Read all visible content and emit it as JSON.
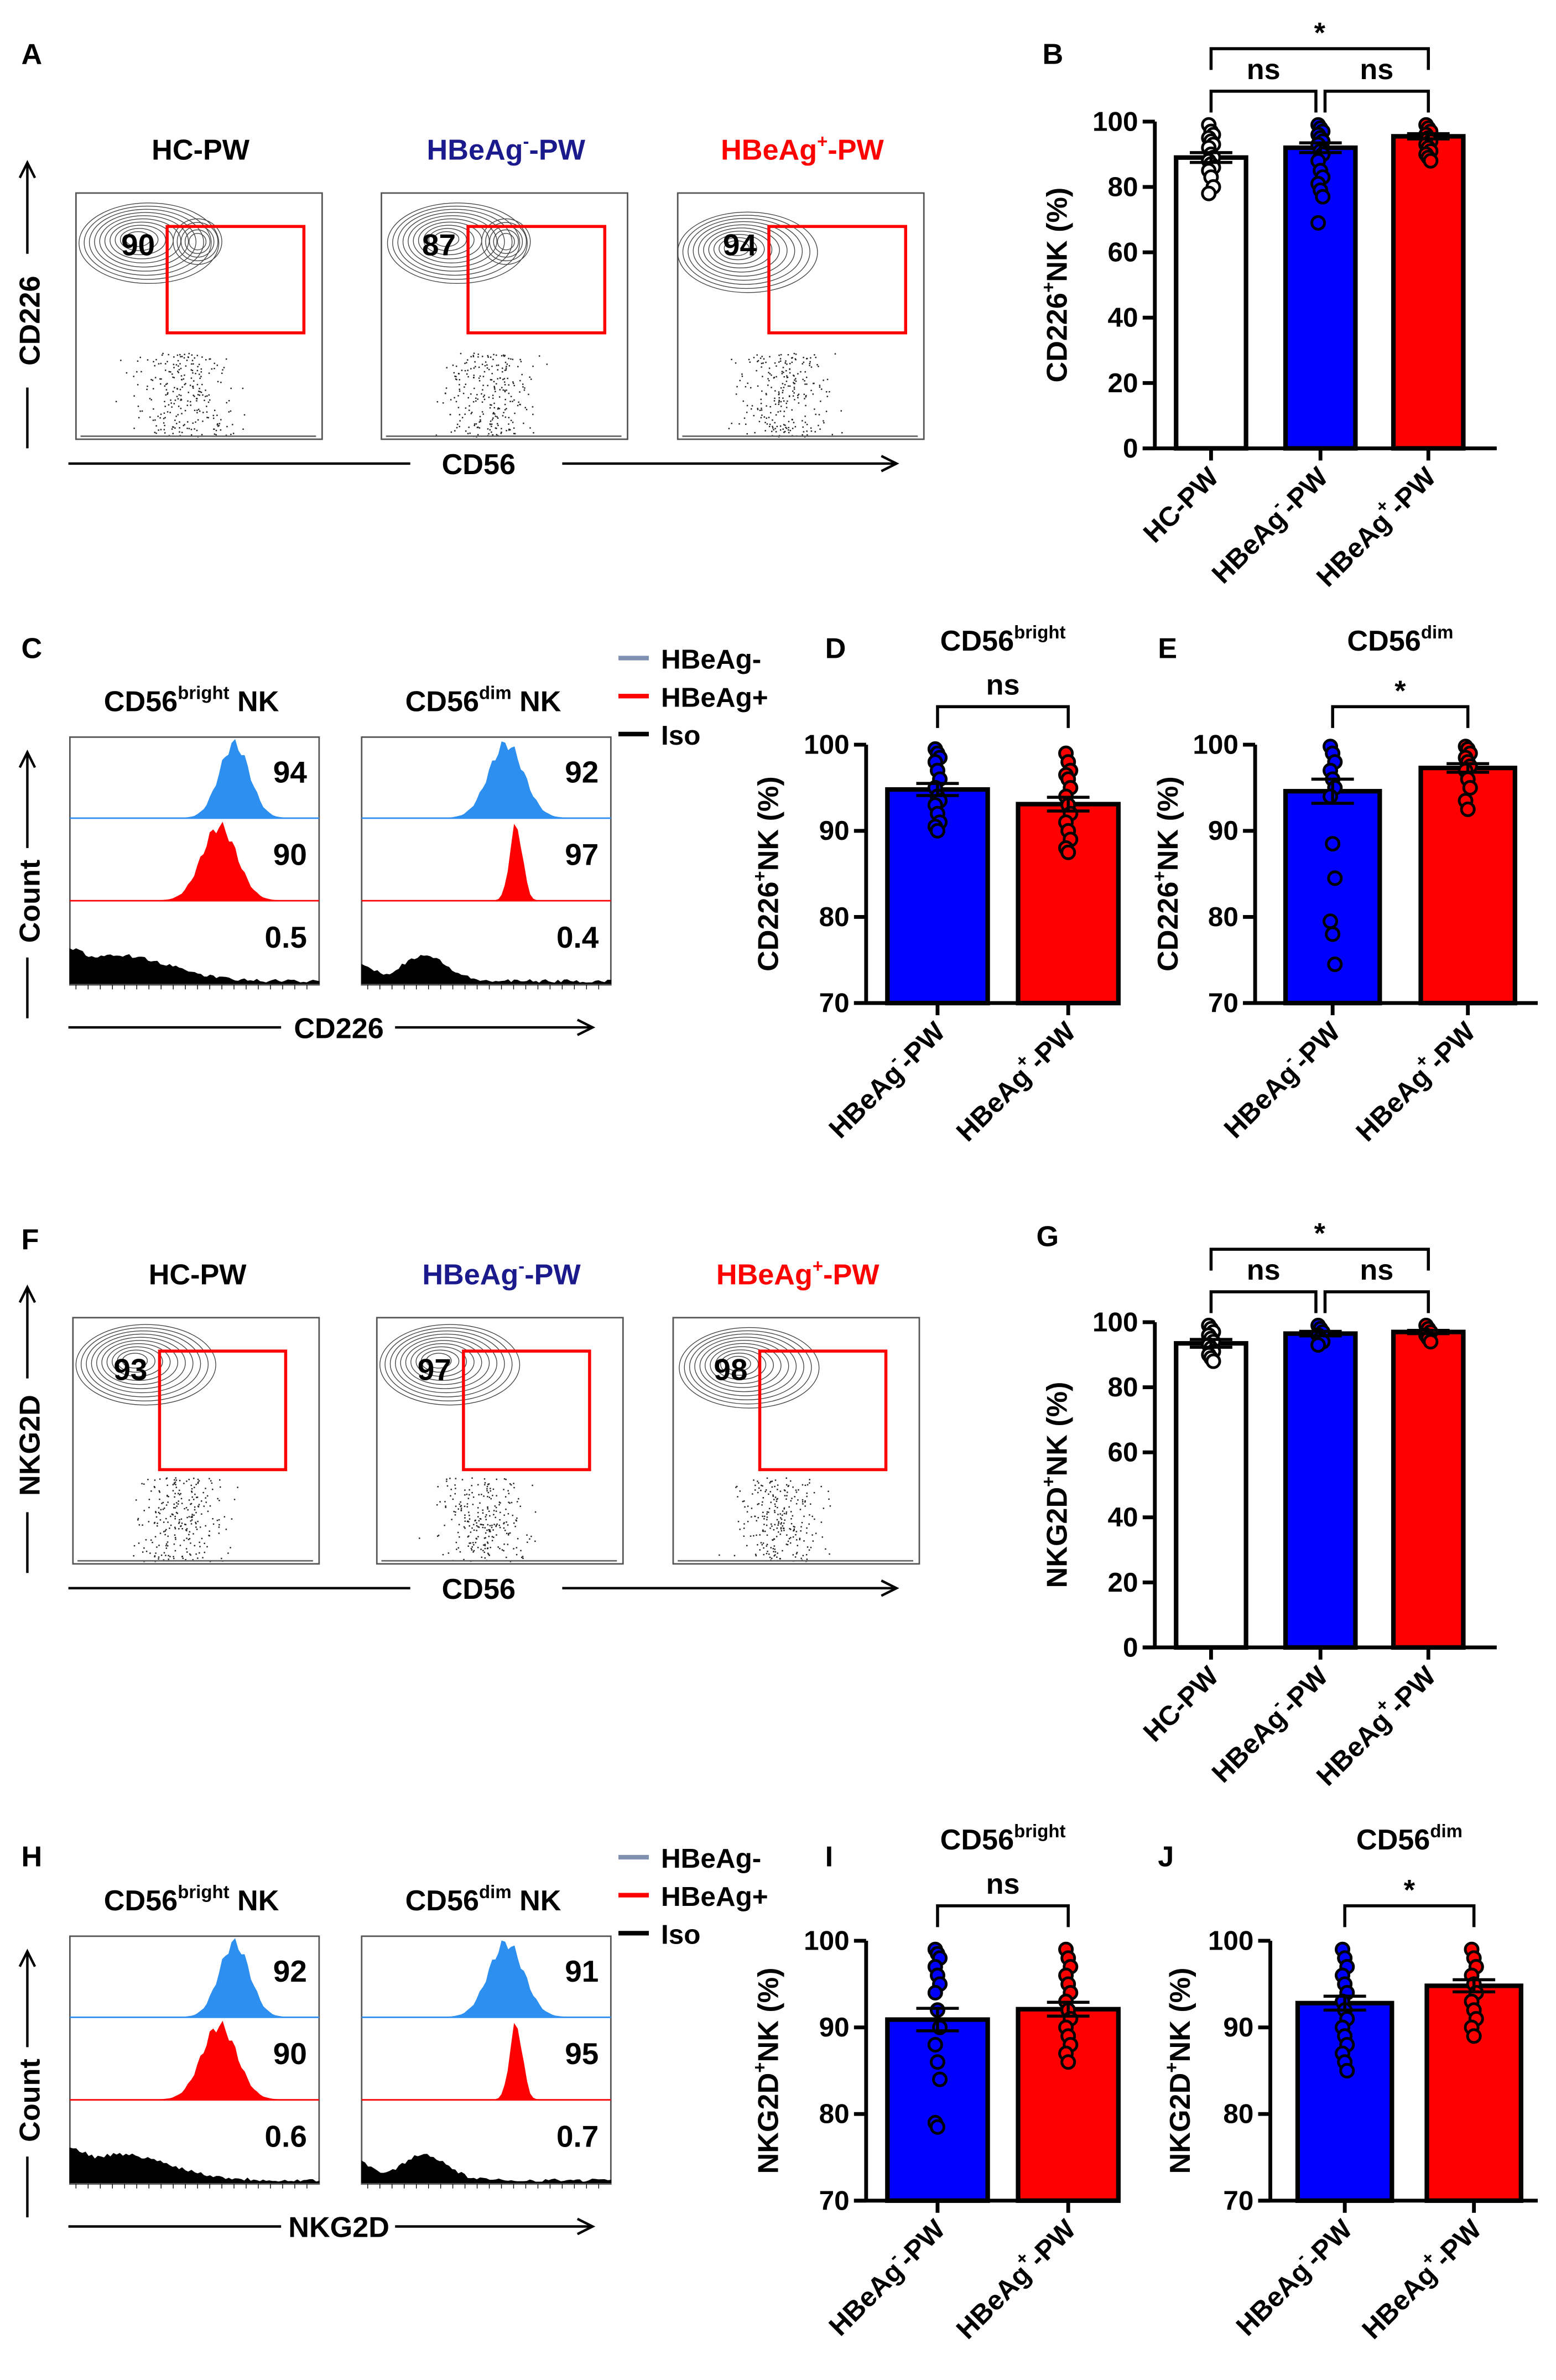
{
  "panels": {
    "A": "A",
    "B": "B",
    "C": "C",
    "D": "D",
    "E": "E",
    "F": "F",
    "G": "G",
    "H": "H",
    "I": "I",
    "J": "J"
  },
  "colors": {
    "hc": "#ffffff",
    "neg": "#0000ff",
    "pos": "#ff0000",
    "title_neg": "#1a1a8c",
    "hist_neg": "#2d8ff0",
    "hist_pos": "#ff0000",
    "hist_iso": "#000000",
    "gate": "#ff0000"
  },
  "panel_A": {
    "y_axis": "CD226",
    "x_axis": "CD56",
    "plots": [
      {
        "base": "HC-PW",
        "sup": "",
        "tail": "",
        "value": "90"
      },
      {
        "base": "HBeAg",
        "sup": "-",
        "tail": "-PW",
        "value": "87"
      },
      {
        "base": "HBeAg",
        "sup": "+",
        "tail": "-PW",
        "value": "94"
      }
    ]
  },
  "panel_C": {
    "y_axis": "Count",
    "x_axis": "CD226",
    "legend": [
      {
        "label": "HBeAg-"
      },
      {
        "label": "HBeAg+"
      },
      {
        "label": "Iso"
      }
    ],
    "groups": [
      {
        "base": "CD56",
        "sup": "bright",
        "tail": " NK",
        "values": [
          "94",
          "90",
          "0.5"
        ]
      },
      {
        "base": "CD56",
        "sup": "dim",
        "tail": " NK",
        "values": [
          "92",
          "97",
          "0.4"
        ]
      }
    ]
  },
  "panel_F": {
    "y_axis": "NKG2D",
    "x_axis": "CD56",
    "plots": [
      {
        "base": "HC-PW",
        "sup": "",
        "tail": "",
        "value": "93"
      },
      {
        "base": "HBeAg",
        "sup": "-",
        "tail": "-PW",
        "value": "97"
      },
      {
        "base": "HBeAg",
        "sup": "+",
        "tail": "-PW",
        "value": "98"
      }
    ]
  },
  "panel_H": {
    "y_axis": "Count",
    "x_axis": "NKG2D",
    "legend": [
      {
        "label": "HBeAg-"
      },
      {
        "label": "HBeAg+"
      },
      {
        "label": "Iso"
      }
    ],
    "groups": [
      {
        "base": "CD56",
        "sup": "bright",
        "tail": " NK",
        "values": [
          "92",
          "90",
          "0.6"
        ]
      },
      {
        "base": "CD56",
        "sup": "dim",
        "tail": " NK",
        "values": [
          "91",
          "95",
          "0.7"
        ]
      }
    ]
  },
  "chart_data": [
    {
      "id": "B",
      "type": "bar",
      "title": "",
      "ylabel_base": "CD226",
      "ylabel_sup": "+",
      "ylabel_tail": "NK (%)",
      "ylim": [
        0,
        100
      ],
      "yticks": [
        "0",
        "20",
        "40",
        "60",
        "80",
        "100"
      ],
      "categories": [
        {
          "base": "HC-PW",
          "sup": ""
        },
        {
          "base": "HBeAg",
          "sup": "-",
          "tail": "-PW"
        },
        {
          "base": "HBeAg",
          "sup": "+",
          "tail": "-PW"
        }
      ],
      "values": [
        89,
        92,
        95.5
      ],
      "sem": [
        1.5,
        1.5,
        0.8
      ],
      "points": [
        [
          99,
          97,
          96,
          95,
          94,
          93,
          92,
          90,
          89,
          88,
          87,
          86,
          85,
          83,
          80,
          78
        ],
        [
          99,
          98,
          97,
          96,
          95,
          94,
          93,
          91,
          90,
          88,
          85,
          83,
          81,
          79,
          77,
          69
        ],
        [
          99,
          98,
          97,
          96,
          95,
          94,
          93,
          92,
          91,
          90,
          89,
          88
        ]
      ],
      "significance": [
        {
          "pair": [
            0,
            1
          ],
          "label": "ns"
        },
        {
          "pair": [
            1,
            2
          ],
          "label": "ns"
        },
        {
          "pair": [
            0,
            2
          ],
          "label": "*"
        }
      ]
    },
    {
      "id": "D",
      "type": "bar",
      "title_base": "CD56",
      "title_sup": "bright",
      "ylabel_base": "CD226",
      "ylabel_sup": "+",
      "ylabel_tail": "NK (%)",
      "ylim": [
        70,
        100
      ],
      "yticks": [
        "70",
        "80",
        "90",
        "100"
      ],
      "categories": [
        {
          "base": "HBeAg",
          "sup": "-",
          "tail": "-PW"
        },
        {
          "base": "HBeAg",
          "sup": "+",
          "tail": "-PW"
        }
      ],
      "values": [
        94.8,
        93.1
      ],
      "sem": [
        0.7,
        0.8
      ],
      "points": [
        [
          99.5,
          99,
          98.5,
          98,
          97,
          96,
          95,
          94,
          93.5,
          93,
          92,
          91,
          90.5,
          90
        ],
        [
          99,
          98,
          97,
          96.5,
          96,
          95,
          94,
          93,
          92,
          91,
          90,
          89,
          88,
          87.5
        ]
      ],
      "significance": [
        {
          "pair": [
            0,
            1
          ],
          "label": "ns"
        }
      ]
    },
    {
      "id": "E",
      "type": "bar",
      "title_base": "CD56",
      "title_sup": "dim",
      "ylabel_base": "CD226",
      "ylabel_sup": "+",
      "ylabel_tail": "NK (%)",
      "ylim": [
        70,
        100
      ],
      "yticks": [
        "70",
        "80",
        "90",
        "100"
      ],
      "categories": [
        {
          "base": "HBeAg",
          "sup": "-",
          "tail": "-PW"
        },
        {
          "base": "HBeAg",
          "sup": "+",
          "tail": "-PW"
        }
      ],
      "values": [
        94.6,
        97.3
      ],
      "sem": [
        1.4,
        0.5
      ],
      "points": [
        [
          99.8,
          99,
          98,
          97,
          96,
          95,
          94,
          88.5,
          84.5,
          79.5,
          78,
          74.5
        ],
        [
          99.8,
          99.5,
          99,
          98.5,
          98,
          97.5,
          97,
          96,
          95,
          93.5,
          92.5
        ]
      ],
      "significance": [
        {
          "pair": [
            0,
            1
          ],
          "label": "*"
        }
      ]
    },
    {
      "id": "G",
      "type": "bar",
      "title": "",
      "ylabel_base": "NKG2D",
      "ylabel_sup": "+",
      "ylabel_tail": "NK (%)",
      "ylim": [
        0,
        100
      ],
      "yticks": [
        "0",
        "20",
        "40",
        "60",
        "80",
        "100"
      ],
      "categories": [
        {
          "base": "HC-PW",
          "sup": ""
        },
        {
          "base": "HBeAg",
          "sup": "-",
          "tail": "-PW"
        },
        {
          "base": "HBeAg",
          "sup": "+",
          "tail": "-PW"
        }
      ],
      "values": [
        93.5,
        96.5,
        97
      ],
      "sem": [
        1.2,
        0.7,
        0.5
      ],
      "points": [
        [
          99,
          98,
          97,
          96,
          95,
          94,
          93,
          92,
          91,
          90,
          89,
          88
        ],
        [
          99,
          98,
          97,
          96,
          95,
          94,
          93
        ],
        [
          99,
          98,
          97,
          96,
          95,
          94
        ]
      ],
      "significance": [
        {
          "pair": [
            0,
            1
          ],
          "label": "ns"
        },
        {
          "pair": [
            1,
            2
          ],
          "label": "ns"
        },
        {
          "pair": [
            0,
            2
          ],
          "label": "*"
        }
      ]
    },
    {
      "id": "I",
      "type": "bar",
      "title_base": "CD56",
      "title_sup": "bright",
      "ylabel_base": "NKG2D",
      "ylabel_sup": "+",
      "ylabel_tail": "NK (%)",
      "ylim": [
        70,
        100
      ],
      "yticks": [
        "70",
        "80",
        "90",
        "100"
      ],
      "categories": [
        {
          "base": "HBeAg",
          "sup": "-",
          "tail": "-PW"
        },
        {
          "base": "HBeAg",
          "sup": "+",
          "tail": "-PW"
        }
      ],
      "values": [
        90.9,
        92.1
      ],
      "sem": [
        1.3,
        0.8
      ],
      "points": [
        [
          99,
          98.5,
          98,
          97,
          96,
          95,
          94,
          92,
          90,
          88,
          86,
          84,
          79,
          78.5
        ],
        [
          99,
          98,
          97,
          96,
          95,
          94,
          93,
          92,
          91,
          90,
          89,
          88,
          87,
          86
        ]
      ],
      "significance": [
        {
          "pair": [
            0,
            1
          ],
          "label": "ns"
        }
      ]
    },
    {
      "id": "J",
      "type": "bar",
      "title_base": "CD56",
      "title_sup": "dim",
      "ylabel_base": "NKG2D",
      "ylabel_sup": "+",
      "ylabel_tail": "NK (%)",
      "ylim": [
        70,
        100
      ],
      "yticks": [
        "70",
        "80",
        "90",
        "100"
      ],
      "categories": [
        {
          "base": "HBeAg",
          "sup": "-",
          "tail": "-PW"
        },
        {
          "base": "HBeAg",
          "sup": "+",
          "tail": "-PW"
        }
      ],
      "values": [
        92.8,
        94.8
      ],
      "sem": [
        0.8,
        0.7
      ],
      "points": [
        [
          99,
          98,
          97,
          96,
          95,
          94,
          93,
          92,
          91,
          90,
          89,
          88,
          87,
          86,
          85
        ],
        [
          99,
          98,
          97,
          96,
          95,
          94,
          93,
          92,
          91,
          90,
          89
        ]
      ],
      "significance": [
        {
          "pair": [
            0,
            1
          ],
          "label": "*"
        }
      ]
    }
  ]
}
